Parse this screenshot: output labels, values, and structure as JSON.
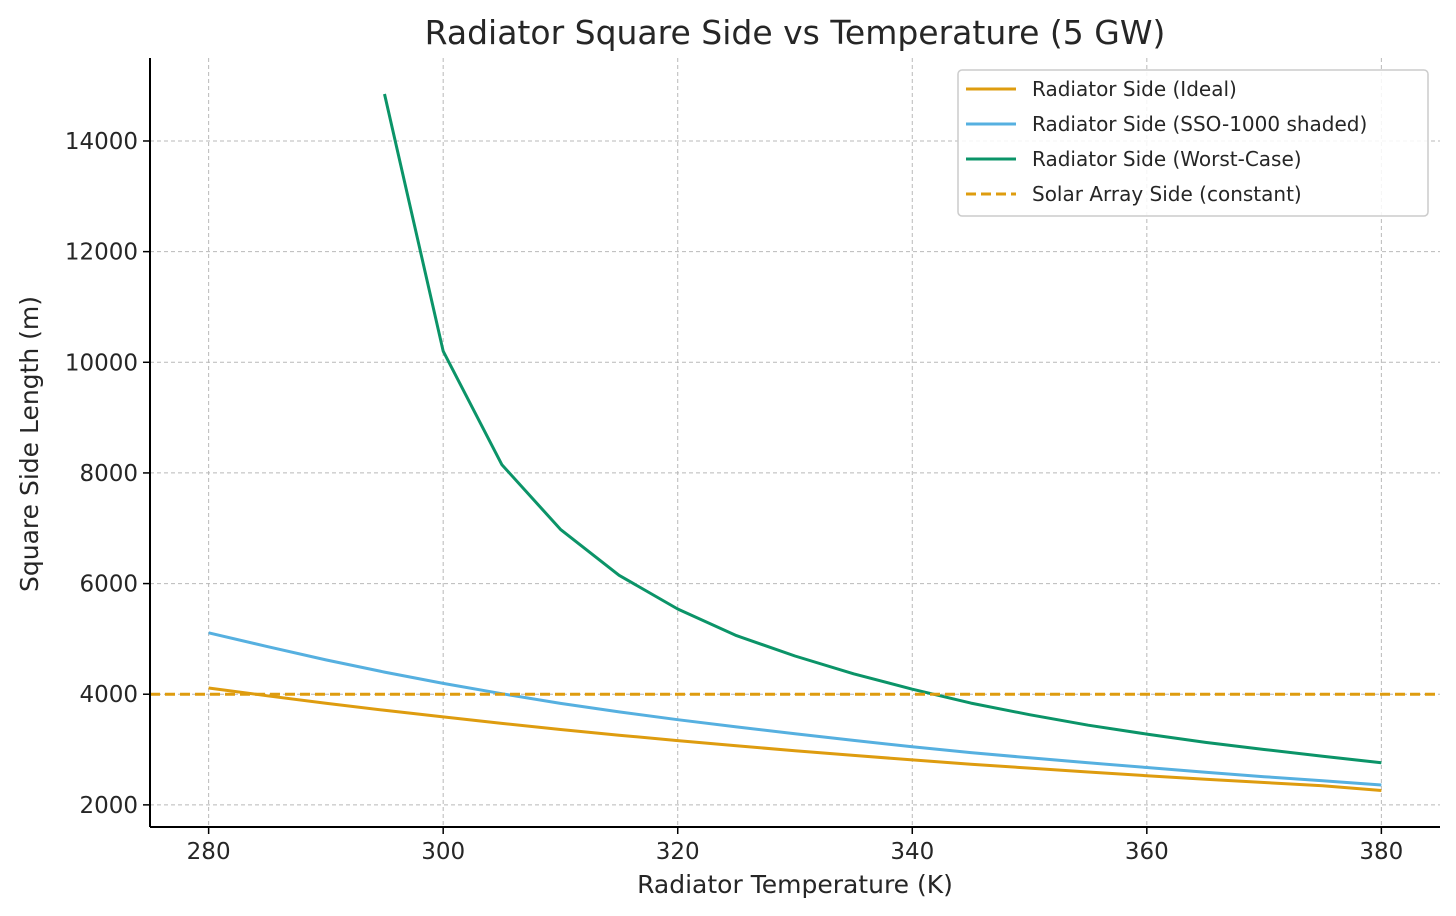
{
  "chart_data": {
    "type": "line",
    "title": "Radiator Square Side vs Temperature (5 GW)",
    "xlabel": "Radiator Temperature (K)",
    "ylabel": "Square Side Length (m)",
    "xlim": [
      275,
      385
    ],
    "ylim": [
      1600,
      15500
    ],
    "xticks": [
      280,
      300,
      320,
      340,
      360,
      380
    ],
    "yticks": [
      2000,
      4000,
      6000,
      8000,
      10000,
      12000,
      14000
    ],
    "grid": true,
    "legend_position": "top-right",
    "series": [
      {
        "name": "Radiator Side (Ideal)",
        "color": "#de9c0f",
        "dash": "solid",
        "x": [
          280,
          285,
          290,
          295,
          300,
          305,
          310,
          315,
          320,
          325,
          330,
          335,
          340,
          345,
          350,
          355,
          360,
          365,
          370,
          375,
          380
        ],
        "y": [
          4112,
          3972,
          3836,
          3710,
          3590,
          3472,
          3363,
          3260,
          3162,
          3068,
          2979,
          2895,
          2813,
          2736,
          2664,
          2595,
          2528,
          2464,
          2404,
          2345,
          2260
        ]
      },
      {
        "name": "Radiator Side (SSO-1000 shaded)",
        "color": "#56b0e0",
        "dash": "solid",
        "x": [
          280,
          285,
          290,
          295,
          300,
          305,
          310,
          315,
          320,
          325,
          330,
          335,
          340,
          345,
          350,
          355,
          360,
          365,
          370,
          375,
          380
        ],
        "y": [
          5110,
          4860,
          4620,
          4400,
          4195,
          4010,
          3835,
          3680,
          3540,
          3410,
          3285,
          3165,
          3050,
          2945,
          2850,
          2760,
          2675,
          2590,
          2510,
          2435,
          2360
        ]
      },
      {
        "name": "Radiator Side (Worst-Case)",
        "color": "#0b9468",
        "dash": "solid",
        "x": [
          295,
          300,
          305,
          310,
          315,
          320,
          325,
          330,
          335,
          340,
          345,
          350,
          355,
          360,
          365,
          370,
          375,
          380
        ],
        "y": [
          14850,
          10200,
          8150,
          6980,
          6150,
          5540,
          5060,
          4690,
          4370,
          4090,
          3840,
          3630,
          3440,
          3280,
          3130,
          3000,
          2880,
          2760
        ]
      },
      {
        "name": "Solar Array Side (constant)",
        "color": "#de9c0f",
        "dash": "dashed",
        "x": [
          275,
          385
        ],
        "y": [
          4000,
          4000
        ]
      }
    ]
  }
}
